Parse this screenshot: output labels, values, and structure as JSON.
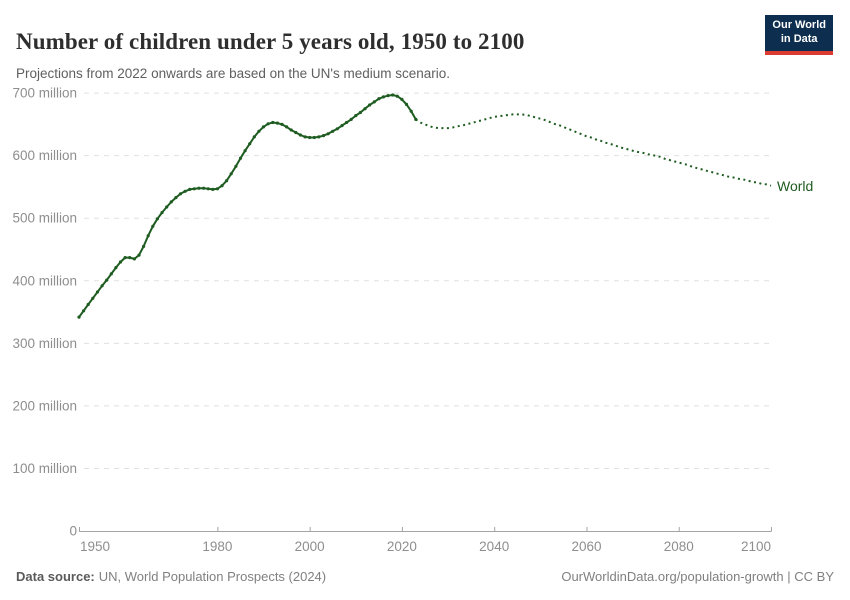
{
  "header": {
    "title": "Number of children under 5 years old, 1950 to 2100",
    "subtitle": "Projections from 2022 onwards are based on the UN's medium scenario."
  },
  "logo": {
    "line1": "Our World",
    "line2": "in Data"
  },
  "series_label": "World",
  "footer": {
    "source_label": "Data source:",
    "source_value": "UN, World Population Prospects (2024)",
    "link": "OurWorldinData.org/population-growth",
    "separator": " | ",
    "license": "CC BY"
  },
  "colors": {
    "line": "#1e5c21",
    "grid": "#e0e0e0",
    "axis": "#a5a5a5",
    "tick_label": "#8e8e8e",
    "title": "#2e2e2e",
    "subtitle": "#5f5f5f",
    "footer": "#808080",
    "logo_bg": "#0d2e4f",
    "logo_accent": "#dc3b32"
  },
  "chart_data": {
    "type": "line",
    "title": "Number of children under 5 years old, 1950 to 2100",
    "subtitle": "Projections from 2022 onwards are based on the UN's medium scenario.",
    "xlabel": "",
    "ylabel": "",
    "unit": "children under 5 years old (millions)",
    "xlim": [
      1950,
      2100
    ],
    "ylim": [
      0,
      700
    ],
    "x_ticks": [
      1950,
      1980,
      2000,
      2020,
      2040,
      2060,
      2080,
      2100
    ],
    "y_ticks": [
      0,
      100,
      200,
      300,
      400,
      500,
      600,
      700
    ],
    "y_tick_suffix": " million",
    "grid": "horizontal dashed",
    "legend": "inline label at end of line",
    "series": [
      {
        "name": "World",
        "style": "solid",
        "period": "historical estimates 1950-2023",
        "points": [
          [
            1950,
            342
          ],
          [
            1951,
            352
          ],
          [
            1952,
            362
          ],
          [
            1953,
            372
          ],
          [
            1954,
            382
          ],
          [
            1955,
            392
          ],
          [
            1956,
            401
          ],
          [
            1957,
            411
          ],
          [
            1958,
            421
          ],
          [
            1959,
            430
          ],
          [
            1960,
            437
          ],
          [
            1961,
            437
          ],
          [
            1962,
            435
          ],
          [
            1963,
            441
          ],
          [
            1964,
            455
          ],
          [
            1965,
            472
          ],
          [
            1966,
            487
          ],
          [
            1967,
            499
          ],
          [
            1968,
            509
          ],
          [
            1969,
            518
          ],
          [
            1970,
            526
          ],
          [
            1971,
            533
          ],
          [
            1972,
            539
          ],
          [
            1973,
            543
          ],
          [
            1974,
            546
          ],
          [
            1975,
            547
          ],
          [
            1976,
            548
          ],
          [
            1977,
            548
          ],
          [
            1978,
            547
          ],
          [
            1979,
            546
          ],
          [
            1980,
            547
          ],
          [
            1981,
            552
          ],
          [
            1982,
            560
          ],
          [
            1983,
            571
          ],
          [
            1984,
            583
          ],
          [
            1985,
            596
          ],
          [
            1986,
            608
          ],
          [
            1987,
            619
          ],
          [
            1988,
            630
          ],
          [
            1989,
            639
          ],
          [
            1990,
            646
          ],
          [
            1991,
            651
          ],
          [
            1992,
            653
          ],
          [
            1993,
            652
          ],
          [
            1994,
            650
          ],
          [
            1995,
            646
          ],
          [
            1996,
            641
          ],
          [
            1997,
            637
          ],
          [
            1998,
            633
          ],
          [
            1999,
            630
          ],
          [
            2000,
            629
          ],
          [
            2001,
            629
          ],
          [
            2002,
            630
          ],
          [
            2003,
            632
          ],
          [
            2004,
            635
          ],
          [
            2005,
            639
          ],
          [
            2006,
            643
          ],
          [
            2007,
            648
          ],
          [
            2008,
            653
          ],
          [
            2009,
            658
          ],
          [
            2010,
            664
          ],
          [
            2011,
            669
          ],
          [
            2012,
            675
          ],
          [
            2013,
            681
          ],
          [
            2014,
            686
          ],
          [
            2015,
            691
          ],
          [
            2016,
            694
          ],
          [
            2017,
            696
          ],
          [
            2018,
            697
          ],
          [
            2019,
            695
          ],
          [
            2020,
            690
          ],
          [
            2021,
            682
          ],
          [
            2022,
            671
          ],
          [
            2023,
            658
          ]
        ]
      },
      {
        "name": "World (UN medium projection)",
        "style": "dotted",
        "period": "projection 2023-2100",
        "points": [
          [
            2023,
            658
          ],
          [
            2024,
            653
          ],
          [
            2025,
            650
          ],
          [
            2026,
            647
          ],
          [
            2027,
            645
          ],
          [
            2028,
            644
          ],
          [
            2029,
            644
          ],
          [
            2030,
            644
          ],
          [
            2031,
            645
          ],
          [
            2032,
            647
          ],
          [
            2033,
            648
          ],
          [
            2034,
            650
          ],
          [
            2035,
            652
          ],
          [
            2036,
            654
          ],
          [
            2037,
            656
          ],
          [
            2038,
            658
          ],
          [
            2039,
            660
          ],
          [
            2040,
            662
          ],
          [
            2041,
            663
          ],
          [
            2042,
            664
          ],
          [
            2043,
            665
          ],
          [
            2044,
            666
          ],
          [
            2045,
            666
          ],
          [
            2046,
            666
          ],
          [
            2047,
            665
          ],
          [
            2048,
            663
          ],
          [
            2049,
            661
          ],
          [
            2050,
            659
          ],
          [
            2051,
            657
          ],
          [
            2052,
            654
          ],
          [
            2053,
            651
          ],
          [
            2054,
            649
          ],
          [
            2055,
            646
          ],
          [
            2056,
            643
          ],
          [
            2057,
            640
          ],
          [
            2058,
            637
          ],
          [
            2059,
            634
          ],
          [
            2060,
            631
          ],
          [
            2061,
            629
          ],
          [
            2062,
            626
          ],
          [
            2063,
            624
          ],
          [
            2064,
            621
          ],
          [
            2065,
            619
          ],
          [
            2066,
            617
          ],
          [
            2067,
            614
          ],
          [
            2068,
            612
          ],
          [
            2069,
            610
          ],
          [
            2070,
            608
          ],
          [
            2071,
            606
          ],
          [
            2072,
            605
          ],
          [
            2073,
            603
          ],
          [
            2074,
            601
          ],
          [
            2075,
            600
          ],
          [
            2076,
            598
          ],
          [
            2077,
            595
          ],
          [
            2078,
            593
          ],
          [
            2079,
            591
          ],
          [
            2080,
            589
          ],
          [
            2081,
            587
          ],
          [
            2082,
            585
          ],
          [
            2083,
            582
          ],
          [
            2084,
            580
          ],
          [
            2085,
            578
          ],
          [
            2086,
            576
          ],
          [
            2087,
            574
          ],
          [
            2088,
            572
          ],
          [
            2089,
            570
          ],
          [
            2090,
            568
          ],
          [
            2091,
            566
          ],
          [
            2092,
            565
          ],
          [
            2093,
            563
          ],
          [
            2094,
            562
          ],
          [
            2095,
            560
          ],
          [
            2096,
            558
          ],
          [
            2097,
            557
          ],
          [
            2098,
            555
          ],
          [
            2099,
            554
          ],
          [
            2100,
            552
          ]
        ]
      }
    ]
  }
}
